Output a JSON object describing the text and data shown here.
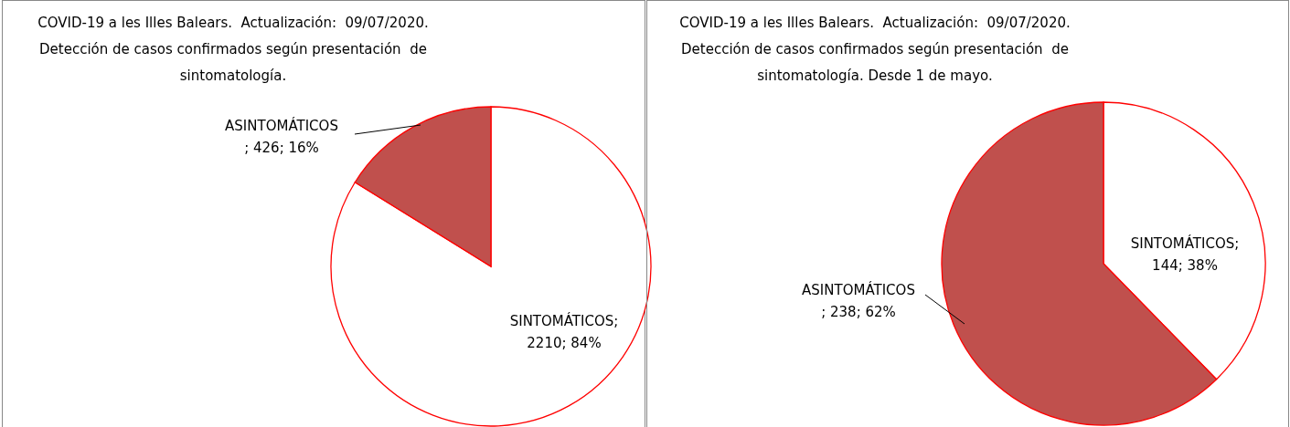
{
  "chart_data": [
    {
      "type": "pie",
      "title": "COVID-19 a les Illes Balears.  Actualización:  09/07/2020.",
      "subtitle": "Detección de casos confirmados según presentación  de sintomatología.",
      "categories": [
        "SINTOMÁTICOS",
        "ASINTOMÁTICOS"
      ],
      "values": [
        2210,
        426
      ],
      "colors": [
        "#ffffff",
        "#c0504d"
      ],
      "value_labels": [
        ";\n2210; 84%",
        "\n; 426; 16%"
      ]
    },
    {
      "type": "pie",
      "title": "COVID-19 a les Illes Balears.  Actualización:  09/07/2020.",
      "subtitle": "Detección de casos confirmados según presentación  de sintomatología. Desde 1 de mayo.",
      "categories": [
        "SINTOMÁTICOS",
        "ASINTOMÁTICOS"
      ],
      "values": [
        144,
        238
      ],
      "colors": [
        "#ffffff",
        "#c0504d"
      ],
      "value_labels": [
        ";\n144; 38%",
        "\n; 238; 62%"
      ]
    }
  ]
}
